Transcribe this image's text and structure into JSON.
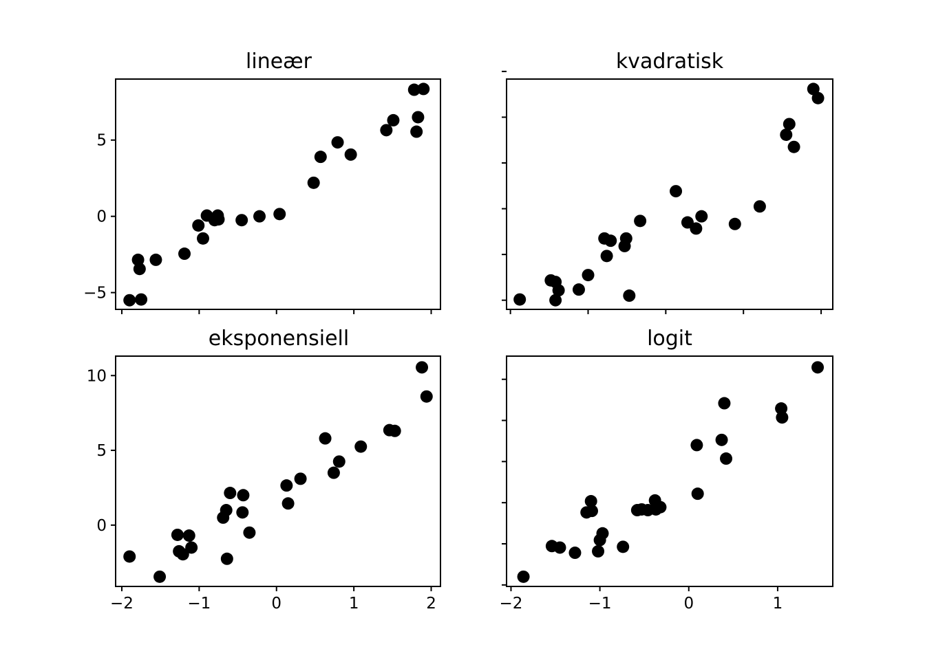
{
  "chart_data": [
    {
      "type": "scatter",
      "title": "lineær",
      "xlim": [
        -2.08,
        2.12
      ],
      "ylim": [
        -6.1,
        9.0
      ],
      "xticks": [
        -2,
        -1,
        0,
        1,
        2
      ],
      "xtick_labels_shown": false,
      "yticks": [
        -5,
        0,
        5
      ],
      "ytick_labels": [
        "−5",
        "0",
        "5"
      ],
      "ytick_labels_shown": true,
      "marker_color": "#000000",
      "points": {
        "x": [
          -1.9,
          -1.75,
          -1.77,
          -1.79,
          -1.56,
          -1.19,
          -1.01,
          -0.95,
          -0.9,
          -0.8,
          -0.76,
          -0.75,
          -0.45,
          -0.22,
          0.04,
          0.48,
          0.57,
          0.79,
          0.96,
          1.42,
          1.51,
          1.78,
          1.83,
          1.81,
          1.9
        ],
        "y": [
          -5.5,
          -5.45,
          -3.45,
          -2.85,
          -2.85,
          -2.45,
          -0.6,
          -1.45,
          0.05,
          -0.25,
          0.05,
          -0.2,
          -0.25,
          0.0,
          0.15,
          2.2,
          3.9,
          4.85,
          4.05,
          5.65,
          6.3,
          8.3,
          6.5,
          5.55,
          8.35
        ]
      }
    },
    {
      "type": "scatter",
      "title": "kvadratisk",
      "xlim": [
        -2.05,
        2.15
      ],
      "ylim": [
        -6.1,
        9.0
      ],
      "xticks": [
        -2,
        -1,
        0,
        1,
        2
      ],
      "xtick_labels_shown": false,
      "yticks": [
        -5.5,
        -2.5,
        0.5,
        3.5,
        6.5,
        9.5
      ],
      "ytick_labels_shown": false,
      "marker_color": "#000000",
      "points": {
        "x": [
          -1.88,
          -1.48,
          -1.42,
          -1.42,
          -1.38,
          -1.12,
          -1.0,
          -0.79,
          -0.76,
          -0.71,
          -0.53,
          -0.51,
          -0.47,
          -0.33,
          0.13,
          0.28,
          0.39,
          0.46,
          0.89,
          1.21,
          1.55,
          1.59,
          1.65,
          1.9,
          1.96
        ],
        "y": [
          -5.45,
          -4.2,
          -5.5,
          -4.3,
          -4.85,
          -4.8,
          -3.85,
          -1.45,
          -2.6,
          -1.6,
          -1.95,
          -1.45,
          -5.2,
          -0.3,
          1.65,
          -0.4,
          -0.8,
          0.0,
          -0.5,
          0.65,
          5.35,
          6.05,
          4.55,
          8.35,
          7.75
        ]
      }
    },
    {
      "type": "scatter",
      "title": "eksponensiell",
      "xlim": [
        -2.08,
        2.12
      ],
      "ylim": [
        -4.1,
        11.3
      ],
      "xticks": [
        -2,
        -1,
        0,
        1,
        2
      ],
      "xtick_labels": [
        "−2",
        "−1",
        "0",
        "1",
        "2"
      ],
      "xtick_labels_shown": true,
      "yticks": [
        0,
        5,
        10
      ],
      "ytick_labels": [
        "0",
        "5",
        "10"
      ],
      "ytick_labels_shown": true,
      "marker_color": "#000000",
      "points": {
        "x": [
          -1.9,
          -1.51,
          -1.28,
          -1.26,
          -1.21,
          -1.13,
          -1.1,
          -0.69,
          -0.65,
          -0.64,
          -0.6,
          -0.44,
          -0.43,
          -0.35,
          0.13,
          0.15,
          0.31,
          0.63,
          0.74,
          0.81,
          1.09,
          1.46,
          1.53,
          1.88,
          1.94
        ],
        "y": [
          -2.1,
          -3.45,
          -0.65,
          -1.75,
          -1.95,
          -0.7,
          -1.5,
          0.5,
          1.0,
          -2.25,
          2.15,
          0.85,
          2.0,
          -0.5,
          2.65,
          1.45,
          3.1,
          5.8,
          3.5,
          4.25,
          5.25,
          6.35,
          6.3,
          10.55,
          8.6
        ]
      }
    },
    {
      "type": "scatter",
      "title": "logit",
      "xlim": [
        -2.05,
        1.62
      ],
      "ylim": [
        -4.1,
        11.3
      ],
      "xticks": [
        -2,
        -1,
        0,
        1
      ],
      "xtick_labels": [
        "−2",
        "−1",
        "0",
        "1"
      ],
      "xtick_labels_shown": true,
      "yticks": [
        -4,
        -1.25,
        1.5,
        4.25,
        7,
        9.75
      ],
      "ytick_labels_shown": false,
      "marker_color": "#000000",
      "points": {
        "x": [
          -1.86,
          -1.54,
          -1.45,
          -1.28,
          -1.15,
          -1.1,
          -1.09,
          -1.02,
          -1.0,
          -0.97,
          -0.74,
          -0.58,
          -0.53,
          -0.46,
          -0.38,
          -0.37,
          -0.32,
          0.09,
          0.1,
          0.37,
          0.4,
          0.42,
          1.04,
          1.05,
          1.45
        ],
        "y": [
          -3.45,
          -1.4,
          -1.5,
          -1.85,
          0.85,
          1.6,
          0.95,
          -1.75,
          -1.0,
          -0.55,
          -1.45,
          1.0,
          1.05,
          1.0,
          1.65,
          1.05,
          1.2,
          5.35,
          2.1,
          5.7,
          8.15,
          4.45,
          7.8,
          7.2,
          10.55
        ]
      }
    }
  ]
}
